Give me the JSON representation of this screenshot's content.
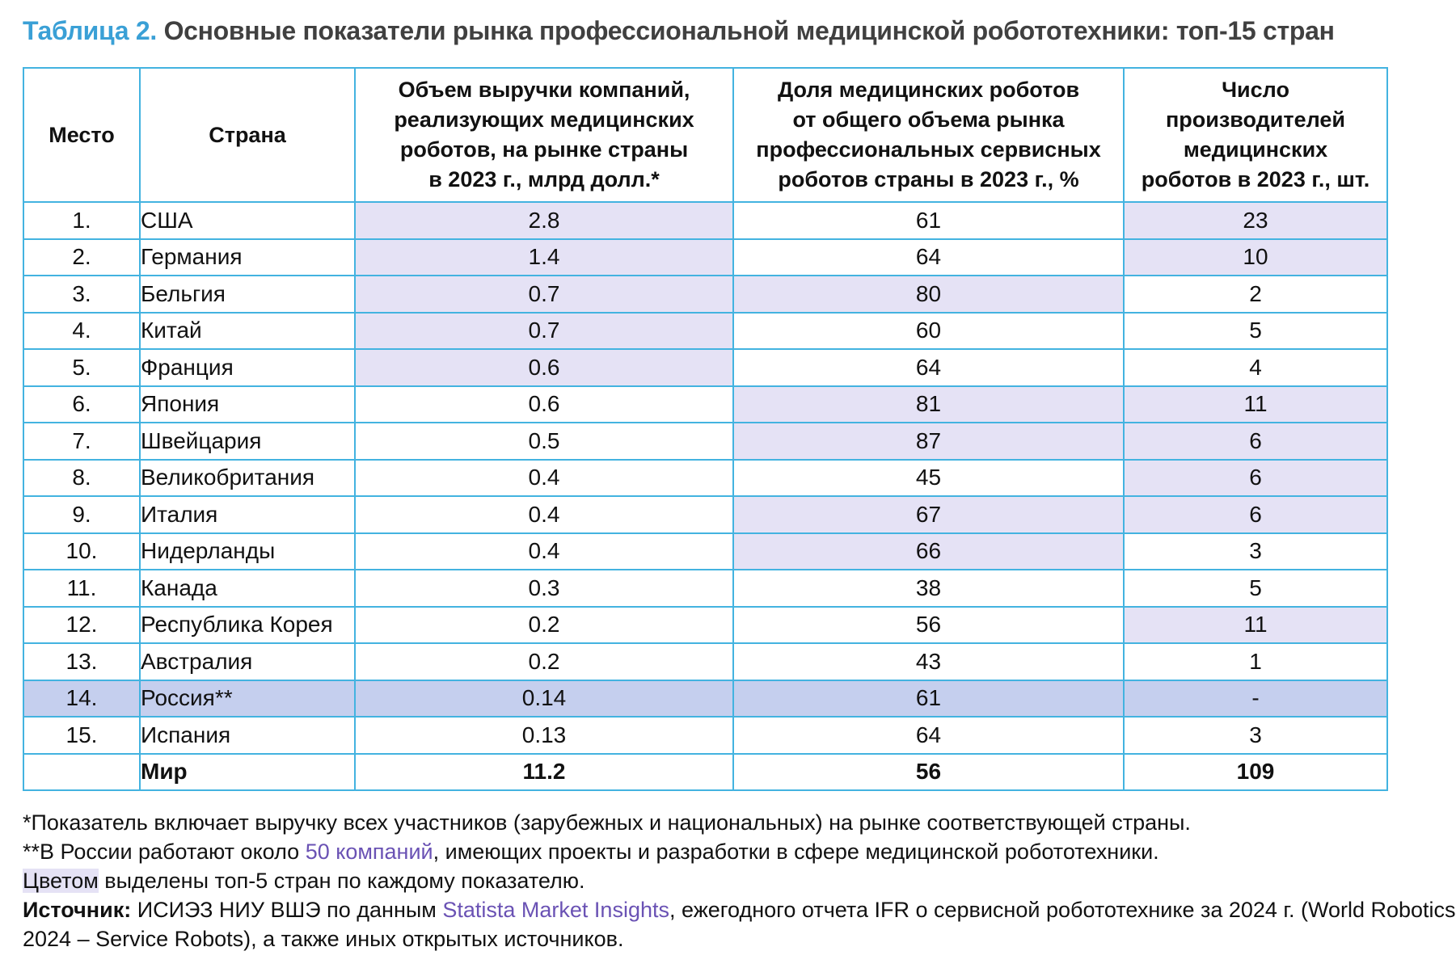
{
  "title": {
    "number": "Таблица 2.",
    "text": "Основные показатели рынка профессиональной медицинской робототехники: топ-15 стран"
  },
  "table": {
    "headers": {
      "rank": "Место",
      "country": "Страна",
      "revenue": [
        "Объем выручки компаний,",
        "реализующих медицинских",
        "роботов, на рынке страны",
        "в 2023 г., млрд долл.*"
      ],
      "share": [
        "Доля медицинских роботов",
        "от общего объема рынка",
        "профессиональных сервисных",
        "роботов страны в 2023 г., %"
      ],
      "producers": [
        "Число",
        "производителей",
        "медицинских",
        "роботов в 2023 г., шт."
      ]
    },
    "rows": [
      {
        "rank": "1.",
        "country": "США",
        "revenue": "2.8",
        "share": "61",
        "producers": "23",
        "hl": [
          true,
          false,
          true
        ]
      },
      {
        "rank": "2.",
        "country": "Германия",
        "revenue": "1.4",
        "share": "64",
        "producers": "10",
        "hl": [
          true,
          false,
          true
        ]
      },
      {
        "rank": "3.",
        "country": "Бельгия",
        "revenue": "0.7",
        "share": "80",
        "producers": "2",
        "hl": [
          true,
          true,
          false
        ]
      },
      {
        "rank": "4.",
        "country": "Китай",
        "revenue": "0.7",
        "share": "60",
        "producers": "5",
        "hl": [
          true,
          false,
          false
        ]
      },
      {
        "rank": "5.",
        "country": "Франция",
        "revenue": "0.6",
        "share": "64",
        "producers": "4",
        "hl": [
          true,
          false,
          false
        ]
      },
      {
        "rank": "6.",
        "country": "Япония",
        "revenue": "0.6",
        "share": "81",
        "producers": "11",
        "hl": [
          false,
          true,
          true
        ]
      },
      {
        "rank": "7.",
        "country": "Швейцария",
        "revenue": "0.5",
        "share": "87",
        "producers": "6",
        "hl": [
          false,
          true,
          true
        ]
      },
      {
        "rank": "8.",
        "country": "Великобритания",
        "revenue": "0.4",
        "share": "45",
        "producers": "6",
        "hl": [
          false,
          false,
          true
        ]
      },
      {
        "rank": "9.",
        "country": "Италия",
        "revenue": "0.4",
        "share": "67",
        "producers": "6",
        "hl": [
          false,
          true,
          true
        ]
      },
      {
        "rank": "10.",
        "country": "Нидерланды",
        "revenue": "0.4",
        "share": "66",
        "producers": "3",
        "hl": [
          false,
          true,
          false
        ]
      },
      {
        "rank": "11.",
        "country": "Канада",
        "revenue": "0.3",
        "share": "38",
        "producers": "5",
        "hl": [
          false,
          false,
          false
        ]
      },
      {
        "rank": "12.",
        "country": "Республика Корея",
        "revenue": "0.2",
        "share": "56",
        "producers": "11",
        "hl": [
          false,
          false,
          true
        ]
      },
      {
        "rank": "13.",
        "country": "Австралия",
        "revenue": "0.2",
        "share": "43",
        "producers": "1",
        "hl": [
          false,
          false,
          false
        ]
      },
      {
        "rank": "14.",
        "country": "Россия**",
        "revenue": "0.14",
        "share": "61",
        "producers": "-",
        "hl": [
          false,
          false,
          false
        ],
        "russia": true
      },
      {
        "rank": "15.",
        "country": "Испания",
        "revenue": "0.13",
        "share": "64",
        "producers": "3",
        "hl": [
          false,
          false,
          false
        ]
      }
    ],
    "total": {
      "rank": "",
      "country": "Мир",
      "revenue": "11.2",
      "share": "56",
      "producers": "109"
    }
  },
  "notes": {
    "note1": "*Показатель включает выручку всех участников (зарубежных и национальных) на рынке соответствующей страны.",
    "note2_a": "**В России работают около ",
    "note2_link": "50 компаний",
    "note2_b": ", имеющих проекты и разработки в сфере медицинской робототехники.",
    "note3_swatch": "Цветом",
    "note3_rest": " выделены топ-5 стран по каждому показателю.",
    "source_label": "Источник:",
    "source_a": " ИСИЭЗ НИУ ВШЭ по данным ",
    "source_link": "Statista Market Insights",
    "source_b": ", ежегодного отчета IFR о сервисной робототехнике за 2024 г. (World Robotics",
    "source_c": "2024 – Service Robots), а также иных открытых источников."
  },
  "colors": {
    "accent": "#3aa0d6",
    "border": "#43b3e0",
    "highlight": "#e5e2f5",
    "russia_row": "#c5cfee",
    "link": "#6a52b4"
  }
}
